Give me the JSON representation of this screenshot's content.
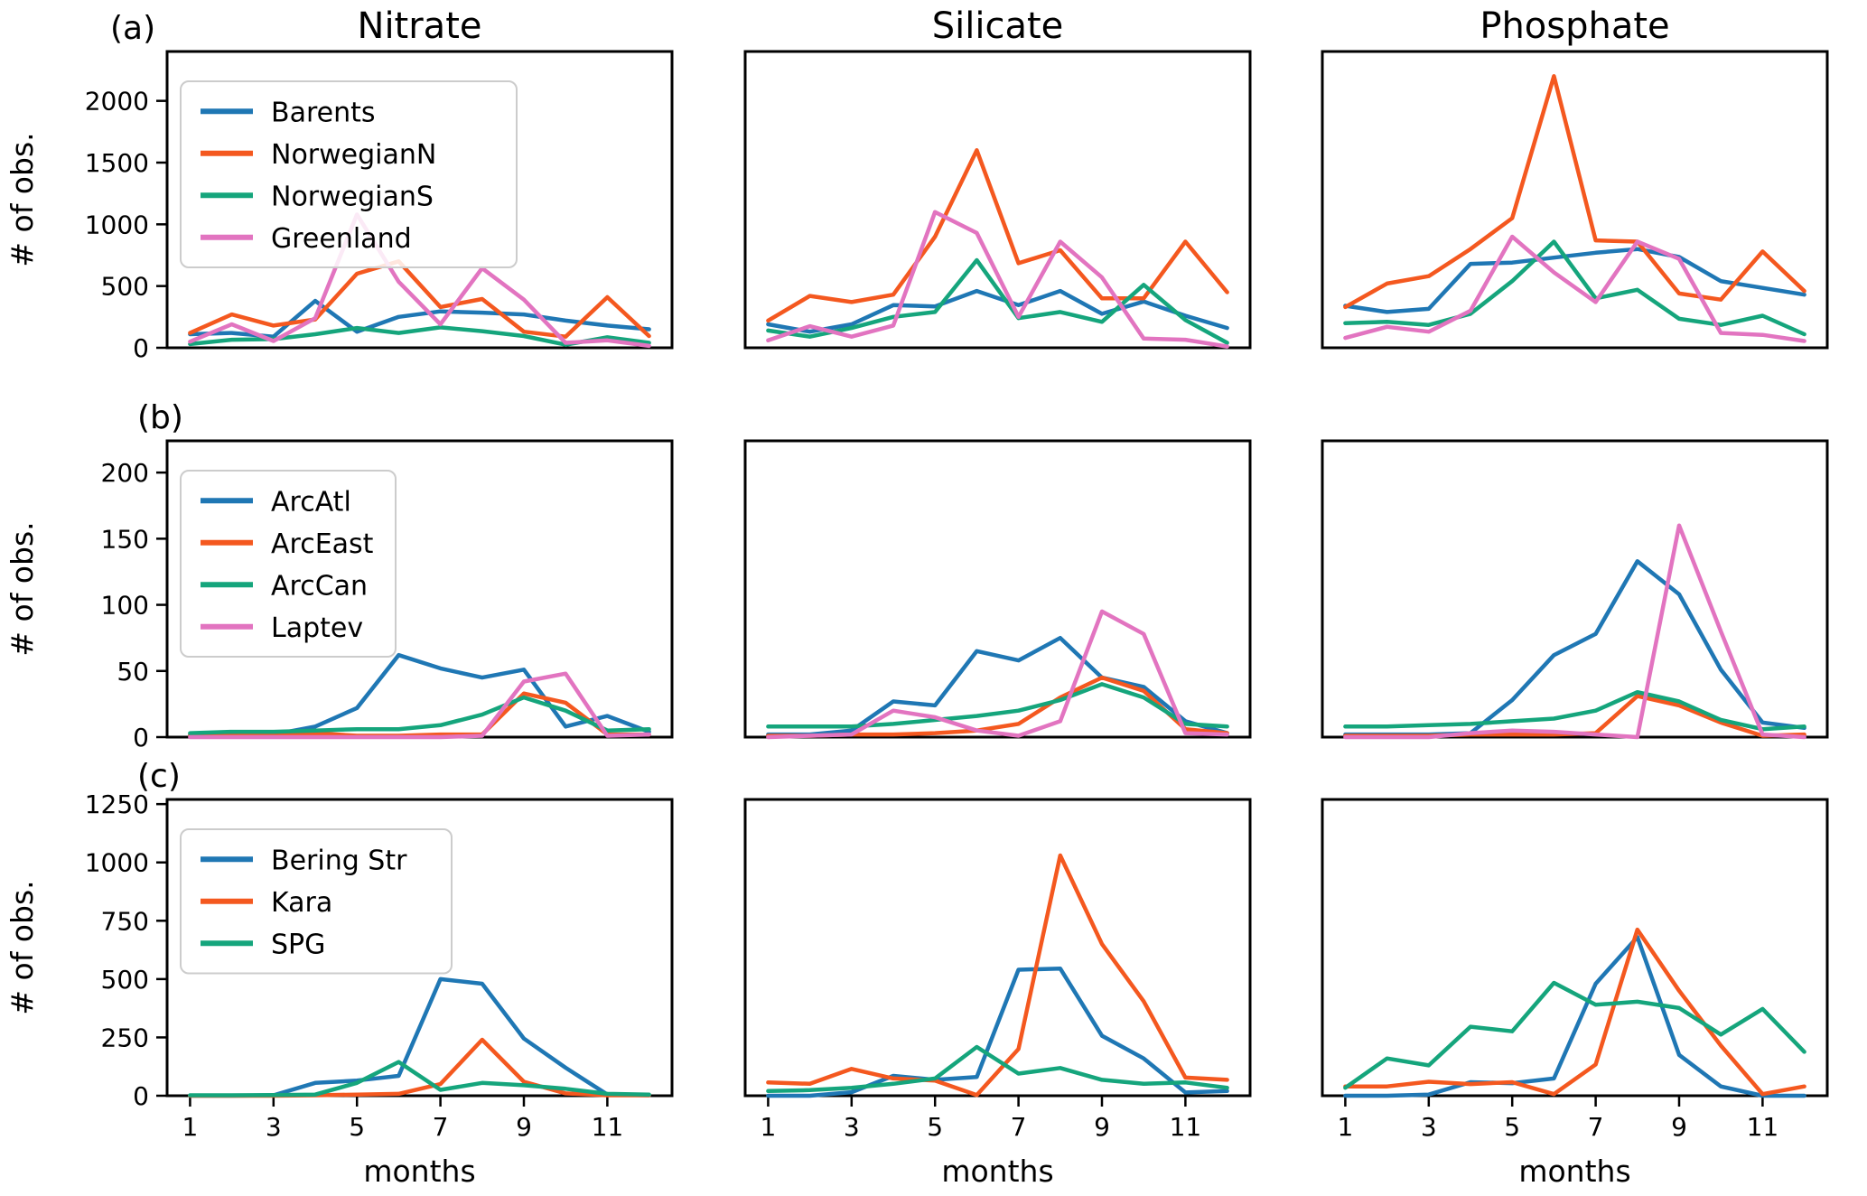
{
  "figure": {
    "column_titles": [
      "Nitrate",
      "Silicate",
      "Phosphate"
    ],
    "row_labels": [
      "(a)",
      "(b)",
      "(c)"
    ],
    "ylabel": "# of obs.",
    "xlabel": "months",
    "xtick_labels": [
      "1",
      "3",
      "5",
      "7",
      "9",
      "11"
    ]
  },
  "colors": {
    "blue": "#1f77b4",
    "orange": "#f4581f",
    "green": "#15a57c",
    "pink": "#e274c0",
    "axis": "#000000",
    "legend_border": "#cccccc"
  },
  "chart_data": {
    "type": "line",
    "x": [
      1,
      2,
      3,
      4,
      5,
      6,
      7,
      8,
      9,
      10,
      11,
      12
    ],
    "xticks": [
      1,
      3,
      5,
      7,
      9,
      11
    ],
    "xlabel": "months",
    "ylabel": "# of obs.",
    "columns": [
      "Nitrate",
      "Silicate",
      "Phosphate"
    ],
    "legend_position": "upper left",
    "grid": false,
    "rows": [
      {
        "label": "(a)",
        "yticks": [
          0,
          500,
          1000,
          1500,
          2000
        ],
        "ylim": [
          0,
          2400
        ],
        "series": [
          {
            "name": "Barents",
            "color_key": "blue",
            "values": {
              "Nitrate": [
                110,
                120,
                90,
                380,
                130,
                250,
                295,
                285,
                270,
                220,
                180,
                150
              ],
              "Silicate": [
                190,
                130,
                190,
                345,
                335,
                460,
                345,
                460,
                275,
                375,
                260,
                160
              ],
              "Phosphate": [
                340,
                290,
                315,
                680,
                690,
                730,
                770,
                800,
                735,
                540,
                485,
                430
              ]
            }
          },
          {
            "name": "NorwegianN",
            "color_key": "orange",
            "values": {
              "Nitrate": [
                120,
                270,
                180,
                230,
                600,
                700,
                330,
                395,
                130,
                90,
                410,
                95
              ],
              "Silicate": [
                220,
                420,
                370,
                430,
                900,
                1600,
                685,
                790,
                400,
                400,
                860,
                450
              ],
              "Phosphate": [
                330,
                520,
                580,
                800,
                1050,
                2200,
                870,
                860,
                440,
                390,
                780,
                460
              ]
            }
          },
          {
            "name": "NorwegianS",
            "color_key": "green",
            "values": {
              "Nitrate": [
                30,
                65,
                70,
                110,
                160,
                120,
                165,
                135,
                95,
                25,
                85,
                40
              ],
              "Silicate": [
                140,
                90,
                160,
                250,
                290,
                710,
                240,
                290,
                210,
                510,
                225,
                40
              ],
              "Phosphate": [
                200,
                210,
                185,
                275,
                540,
                860,
                400,
                470,
                235,
                185,
                260,
                110
              ]
            }
          },
          {
            "name": "Greenland",
            "color_key": "pink",
            "values": {
              "Nitrate": [
                50,
                190,
                55,
                240,
                1080,
                535,
                190,
                645,
                390,
                40,
                60,
                15
              ],
              "Silicate": [
                60,
                175,
                90,
                180,
                1100,
                930,
                250,
                860,
                570,
                75,
                65,
                10
              ],
              "Phosphate": [
                80,
                170,
                130,
                300,
                900,
                610,
                370,
                860,
                720,
                120,
                105,
                55
              ]
            }
          }
        ]
      },
      {
        "label": "(b)",
        "yticks": [
          0,
          50,
          100,
          150,
          200
        ],
        "ylim": [
          0,
          224
        ],
        "series": [
          {
            "name": "ArcAtl",
            "color_key": "blue",
            "values": {
              "Nitrate": [
                2,
                2,
                2,
                8,
                22,
                62,
                52,
                45,
                51,
                8,
                16,
                4
              ],
              "Silicate": [
                2,
                2,
                5,
                27,
                24,
                65,
                58,
                75,
                45,
                38,
                12,
                3
              ],
              "Phosphate": [
                2,
                2,
                2,
                3,
                28,
                62,
                78,
                133,
                108,
                51,
                11,
                7
              ]
            }
          },
          {
            "name": "ArcEast",
            "color_key": "orange",
            "values": {
              "Nitrate": [
                1,
                1,
                2,
                3,
                1,
                1,
                2,
                2,
                33,
                26,
                2,
                2
              ],
              "Silicate": [
                1,
                1,
                2,
                2,
                3,
                5,
                10,
                30,
                45,
                35,
                6,
                3
              ],
              "Phosphate": [
                1,
                1,
                1,
                2,
                2,
                2,
                3,
                31,
                24,
                11,
                1,
                2
              ]
            }
          },
          {
            "name": "ArcCan",
            "color_key": "green",
            "values": {
              "Nitrate": [
                3,
                4,
                4,
                5,
                6,
                6,
                9,
                17,
                30,
                20,
                5,
                6
              ],
              "Silicate": [
                8,
                8,
                8,
                10,
                13,
                16,
                20,
                28,
                40,
                30,
                10,
                8
              ],
              "Phosphate": [
                8,
                8,
                9,
                10,
                12,
                14,
                20,
                34,
                27,
                13,
                6,
                8
              ]
            }
          },
          {
            "name": "Laptev",
            "color_key": "pink",
            "values": {
              "Nitrate": [
                0,
                0,
                0,
                0,
                0,
                0,
                0,
                1,
                42,
                48,
                1,
                2
              ],
              "Silicate": [
                0,
                1,
                2,
                20,
                15,
                5,
                1,
                12,
                95,
                78,
                3,
                2
              ],
              "Phosphate": [
                0,
                0,
                0,
                3,
                5,
                4,
                2,
                0,
                160,
                80,
                2,
                0
              ]
            }
          }
        ]
      },
      {
        "label": "(c)",
        "yticks": [
          0,
          250,
          500,
          750,
          1000,
          1250
        ],
        "ylim": [
          0,
          1270
        ],
        "series": [
          {
            "name": "Bering Str",
            "color_key": "blue",
            "values": {
              "Nitrate": [
                0,
                0,
                2,
                55,
                65,
                85,
                500,
                480,
                245,
                120,
                5,
                2
              ],
              "Silicate": [
                0,
                0,
                15,
                85,
                68,
                80,
                540,
                545,
                257,
                160,
                14,
                20
              ],
              "Phosphate": [
                0,
                0,
                5,
                58,
                54,
                74,
                480,
                680,
                175,
                40,
                0,
                0
              ]
            }
          },
          {
            "name": "Kara",
            "color_key": "orange",
            "values": {
              "Nitrate": [
                0,
                0,
                0,
                2,
                5,
                8,
                50,
                240,
                60,
                10,
                2,
                2
              ],
              "Silicate": [
                57,
                51,
                115,
                74,
                65,
                3,
                200,
                1030,
                650,
                405,
                78,
                68
              ],
              "Phosphate": [
                40,
                40,
                60,
                50,
                58,
                7,
                134,
                712,
                450,
                215,
                7,
                40
              ]
            }
          },
          {
            "name": "SPG",
            "color_key": "green",
            "values": {
              "Nitrate": [
                2,
                2,
                3,
                5,
                55,
                145,
                25,
                55,
                45,
                30,
                8,
                5
              ],
              "Silicate": [
                20,
                24,
                34,
                51,
                74,
                209,
                95,
                119,
                68,
                51,
                57,
                34
              ],
              "Phosphate": [
                34,
                160,
                130,
                296,
                276,
                484,
                390,
                403,
                376,
                262,
                372,
                188
              ]
            }
          }
        ]
      }
    ]
  },
  "layout_note": "3x3 grid of line subplots; y tick labels on left column only; x tick labels on bottom row only"
}
